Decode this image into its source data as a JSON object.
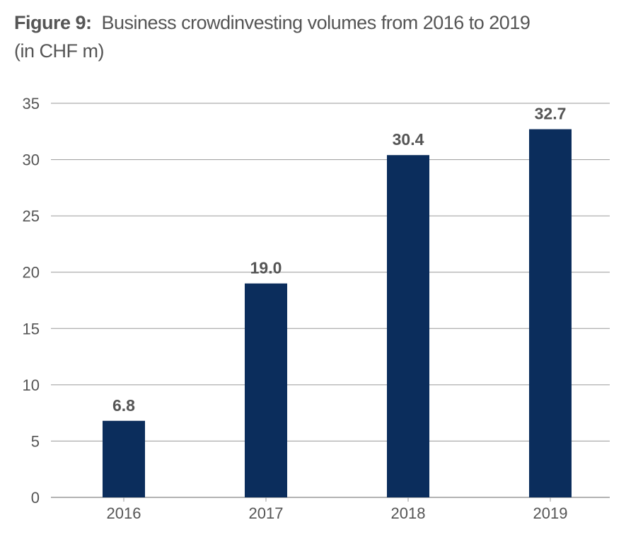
{
  "chart_data": {
    "type": "bar",
    "title_prefix": "Figure 9:",
    "title": "Business crowdinvesting volumes from 2016 to 2019",
    "subtitle": "(in CHF  m)",
    "categories": [
      "2016",
      "2017",
      "2018",
      "2019"
    ],
    "values": [
      6.8,
      19.0,
      30.4,
      32.7
    ],
    "data_labels": [
      "6.8",
      "19.0",
      "30.4",
      "32.7"
    ],
    "ylim": [
      0,
      35
    ],
    "yticks": [
      0,
      5,
      10,
      15,
      20,
      25,
      30,
      35
    ],
    "grid": true,
    "xlabel": "",
    "ylabel": "",
    "colors": {
      "bar": "#0b2d5c",
      "grid": "#9a9a9a",
      "text": "#555555"
    }
  }
}
